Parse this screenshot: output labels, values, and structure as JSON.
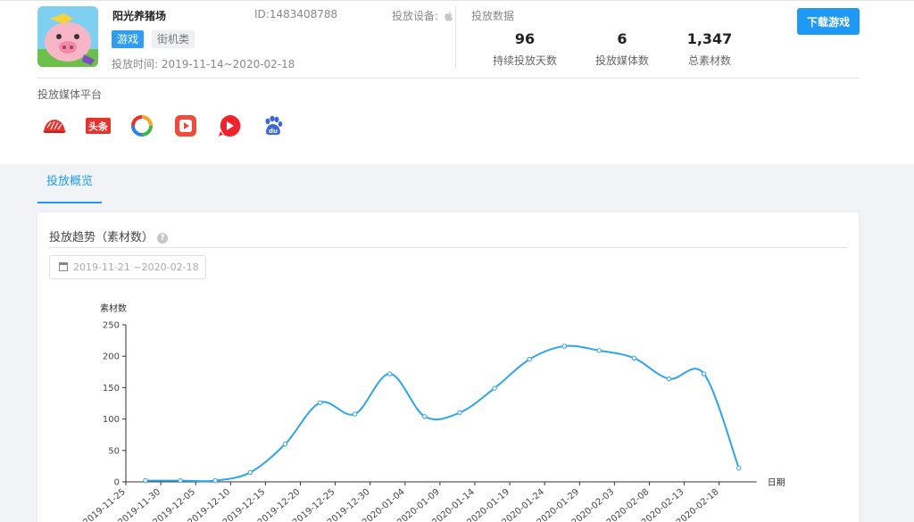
{
  "app": {
    "name": "阳光养猪场",
    "id": "ID:1483408788",
    "device_label": "投放设备:",
    "tags": [
      "游戏",
      "街机类"
    ],
    "launch_time_label": "投放时间:",
    "launch_time": "2019-11-14~2020-02-18"
  },
  "stats": {
    "title": "投放数据",
    "items": [
      {
        "value": "96",
        "label": "持续投放天数"
      },
      {
        "value": "6",
        "label": "投放媒体数"
      },
      {
        "value": "1,347",
        "label": "总素材数"
      }
    ]
  },
  "download_button": "下载游戏",
  "platforms": {
    "title": "投放媒体平台",
    "icons": [
      "hat-icon",
      "toutiao-icon",
      "ring-icon",
      "video-play-icon",
      "play-circle-icon",
      "baidu-paw-icon"
    ],
    "colors": [
      "#e8322d",
      "#e8322d",
      "#f5a623",
      "#f04a3c",
      "#f0232d",
      "#3b66d6"
    ],
    "toutiao_text": "头条",
    "baidu_text": "du"
  },
  "tabs": [
    {
      "label": "投放概览",
      "active": true
    }
  ],
  "trend": {
    "title": "投放趋势（素材数）",
    "help_icon": "?",
    "date_range": "2019-11-21 ~2020-02-18"
  },
  "colors": {
    "accent": "#1e9af5",
    "line": "#2fa4ec"
  },
  "chart_data": {
    "type": "line",
    "ylabel": "素材数",
    "xlabel": "日期",
    "ylim": [
      0,
      250
    ],
    "yticks": [
      0,
      50,
      100,
      150,
      200,
      250
    ],
    "categories": [
      "2019-11-25",
      "2019-11-30",
      "2019-12-05",
      "2019-12-10",
      "2019-12-15",
      "2019-12-20",
      "2019-12-25",
      "2019-12-30",
      "2020-01-04",
      "2020-01-09",
      "2020-01-14",
      "2020-01-19",
      "2020-01-24",
      "2020-01-29",
      "2020-02-03",
      "2020-02-08",
      "2020-02-13",
      "2020-02-18"
    ],
    "series": [
      {
        "values": [
          2,
          2,
          2,
          15,
          60,
          126,
          108,
          172,
          104,
          110,
          149,
          195,
          216,
          209,
          197,
          164,
          172,
          22
        ]
      }
    ]
  }
}
